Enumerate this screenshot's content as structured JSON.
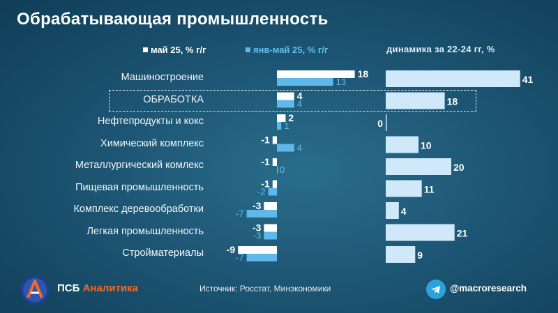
{
  "header": {
    "title": "Обрабатывающая промышленность"
  },
  "legend": {
    "may_label": "май 25, % г/г",
    "janmay_label": "янв-май 25, % г/г",
    "dynamics_title": "динамика за 22-24 гг, %"
  },
  "colors": {
    "may": "#ffffff",
    "janmay": "#5fb8ea",
    "dynamics": "#cfe9fa",
    "label_light": "#5fc0ee"
  },
  "chart_data": [
    {
      "type": "bar",
      "orientation": "horizontal",
      "categories": [
        "Машиностроение",
        "ОБРАБОТКА",
        "Нефтепродукты и кокс",
        "Химический комплекс",
        "Металлургический комлекс",
        "Пищевая промышленность",
        "Комплекс деревообработки",
        "Легкая промышленность",
        "Стройматериалы"
      ],
      "series": [
        {
          "name": "май 25, % г/г",
          "values": [
            18,
            4,
            2,
            -1,
            -1,
            -1,
            -3,
            -3,
            -9
          ]
        },
        {
          "name": "янв-май 25, % г/г",
          "values": [
            13,
            4,
            1,
            4,
            0,
            -2,
            -7,
            -3,
            -7
          ]
        }
      ],
      "highlighted_category": "ОБРАБОТКА"
    },
    {
      "type": "bar",
      "orientation": "horizontal",
      "title": "динамика за 22-24 гг, %",
      "categories": [
        "Машиностроение",
        "ОБРАБОТКА",
        "Нефтепродукты и кокс",
        "Химический комплекс",
        "Металлургический комлекс",
        "Пищевая промышленность",
        "Комплекс деревообработки",
        "Легкая промышленность",
        "Стройматериалы"
      ],
      "values": [
        41,
        18,
        0,
        10,
        20,
        11,
        4,
        21,
        9
      ]
    }
  ],
  "footer": {
    "brand_main": "ПСБ",
    "brand_accent": "Аналитика",
    "source": "Источник:  Росстат, Минэкономики",
    "channel": "@macroresearch"
  }
}
